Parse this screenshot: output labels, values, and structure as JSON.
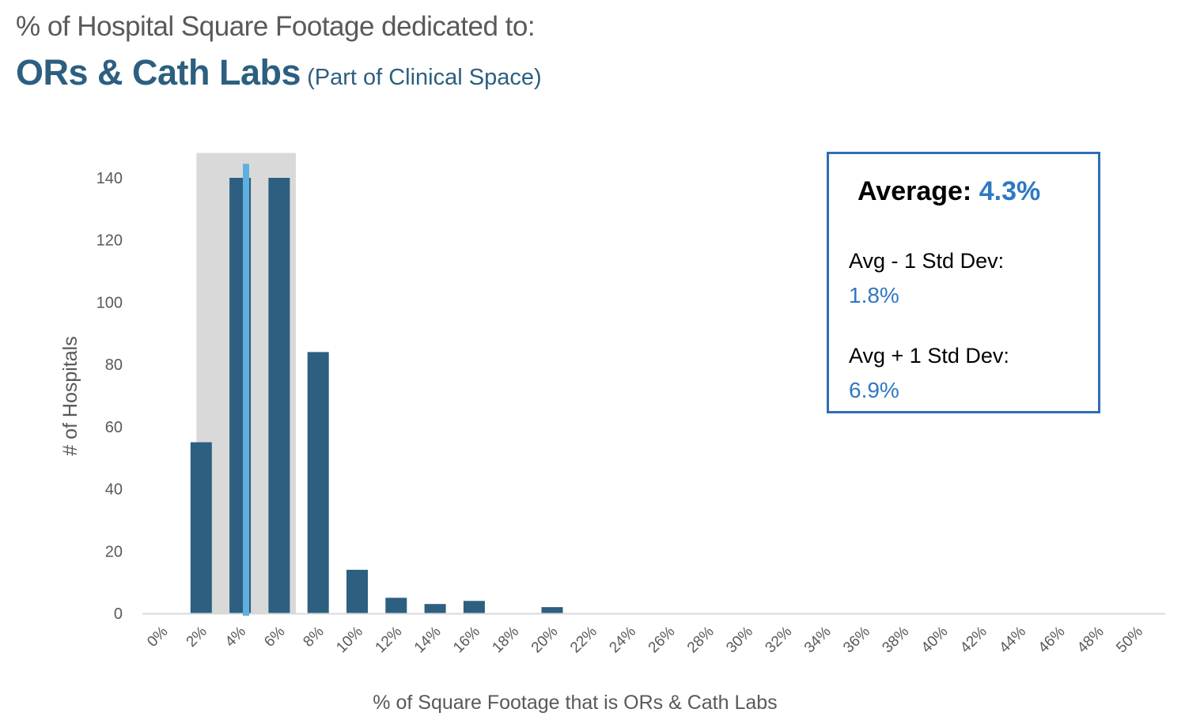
{
  "header": {
    "line1": "% of Hospital Square Footage dedicated to:",
    "title": "ORs & Cath Labs",
    "subtitle": "(Part of Clinical Space)"
  },
  "stats": {
    "average_label": "Average:",
    "average_value": "4.3%",
    "minus_label": "Avg - 1 Std Dev:",
    "minus_value": "1.8%",
    "plus_label": "Avg + 1 Std Dev:",
    "plus_value": "6.9%"
  },
  "colors": {
    "bar": "#2c5f80",
    "avg_line": "#5fafdf",
    "band": "#d9d9d9",
    "axis": "#d9d9d9",
    "accent": "#2f78c4"
  },
  "chart_data": {
    "type": "bar",
    "title": "ORs & Cath Labs",
    "xlabel": "% of Square Footage that is ORs & Cath Labs",
    "ylabel": "# of Hospitals",
    "ylim": [
      0,
      148
    ],
    "yticks": [
      0,
      20,
      40,
      60,
      80,
      100,
      120,
      140
    ],
    "categories": [
      "0%",
      "2%",
      "4%",
      "6%",
      "8%",
      "10%",
      "12%",
      "14%",
      "16%",
      "18%",
      "20%",
      "22%",
      "24%",
      "26%",
      "28%",
      "30%",
      "32%",
      "34%",
      "36%",
      "38%",
      "40%",
      "42%",
      "44%",
      "46%",
      "48%",
      "50%"
    ],
    "values": [
      0,
      55,
      140,
      140,
      84,
      14,
      5,
      3,
      4,
      0,
      2,
      0,
      0,
      0,
      0,
      0,
      0,
      0,
      0,
      0,
      0,
      0,
      0,
      0,
      0,
      0
    ],
    "average": 4.3,
    "std_band": [
      1.8,
      6.9
    ],
    "grid": false,
    "legend": "none"
  }
}
